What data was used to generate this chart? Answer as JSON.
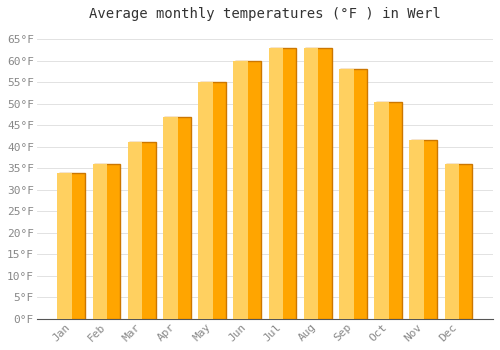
{
  "title": "Average monthly temperatures (°F ) in Werl",
  "months": [
    "Jan",
    "Feb",
    "Mar",
    "Apr",
    "May",
    "Jun",
    "Jul",
    "Aug",
    "Sep",
    "Oct",
    "Nov",
    "Dec"
  ],
  "values": [
    34,
    36,
    41,
    47,
    55,
    60,
    63,
    63,
    58,
    50.5,
    41.5,
    36
  ],
  "bar_color": "#FFA500",
  "bar_edge_color": "#CC7700",
  "background_color": "#FFFFFF",
  "plot_bg_color": "#FFFFFF",
  "ylim": [
    0,
    68
  ],
  "yticks": [
    0,
    5,
    10,
    15,
    20,
    25,
    30,
    35,
    40,
    45,
    50,
    55,
    60,
    65
  ],
  "ytick_labels": [
    "0°F",
    "5°F",
    "10°F",
    "15°F",
    "20°F",
    "25°F",
    "30°F",
    "35°F",
    "40°F",
    "45°F",
    "50°F",
    "55°F",
    "60°F",
    "65°F"
  ],
  "grid_color": "#DDDDDD",
  "title_fontsize": 10,
  "tick_fontsize": 8,
  "font_family": "monospace",
  "bar_width": 0.75
}
